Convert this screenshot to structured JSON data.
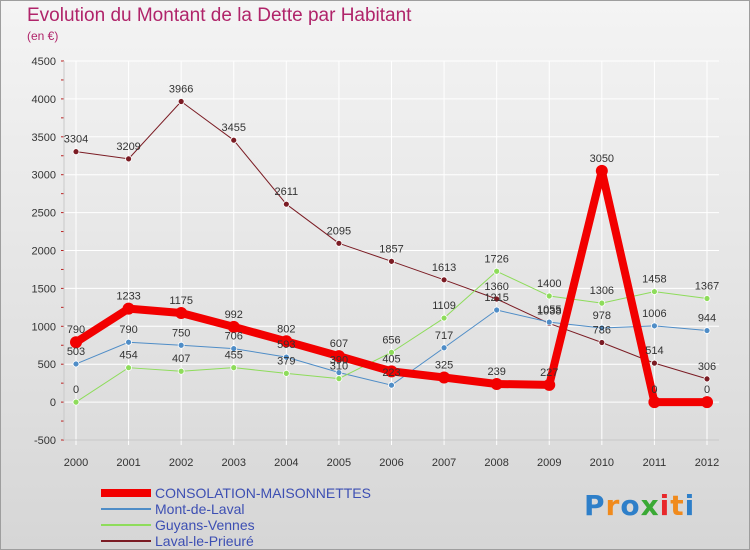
{
  "chart_data": {
    "type": "line",
    "title": "Evolution du Montant de la Dette par Habitant",
    "subtitle": "(en €)",
    "x": [
      "2000",
      "2001",
      "2002",
      "2003",
      "2004",
      "2005",
      "2006",
      "2007",
      "2008",
      "2009",
      "2010",
      "2011",
      "2012"
    ],
    "ylim": [
      -500,
      4500
    ],
    "yticks": [
      -500,
      0,
      500,
      1000,
      1500,
      2000,
      2500,
      3000,
      3500,
      4000,
      4500
    ],
    "grid": true,
    "legend_position": "bottom-left",
    "series": [
      {
        "name": "Laval-le-Prieuré",
        "color": "#7b1c24",
        "width": 1,
        "values": [
          3304,
          3209,
          3966,
          3455,
          2611,
          2095,
          1857,
          1613,
          1360,
          1038,
          786,
          514,
          306
        ]
      },
      {
        "name": "Mont-de-Laval",
        "color": "#4f8dc7",
        "width": 1,
        "values": [
          503,
          790,
          750,
          706,
          593,
          390,
          223,
          717,
          1215,
          1055,
          978,
          1006,
          944
        ]
      },
      {
        "name": "Guyans-Vennes",
        "color": "#8edc5b",
        "width": 1,
        "values": [
          0,
          454,
          407,
          455,
          379,
          310,
          656,
          1109,
          1726,
          1400,
          1306,
          1458,
          1367
        ]
      },
      {
        "name": "CONSOLATION-MAISONNETTES",
        "color": "#f20000",
        "width": 8,
        "values": [
          790,
          1233,
          1175,
          992,
          802,
          607,
          405,
          325,
          239,
          227,
          3050,
          0,
          0
        ]
      }
    ],
    "legend_order": [
      "CONSOLATION-MAISONNETTES",
      "Mont-de-Laval",
      "Guyans-Vennes",
      "Laval-le-Prieuré"
    ]
  },
  "logo": {
    "text": "Proxiti",
    "colors": [
      "#2e7fc9",
      "#f08a1c",
      "#2e7fc9",
      "#3aa935",
      "#e8282b",
      "#f08a1c",
      "#2e7fc9"
    ]
  }
}
